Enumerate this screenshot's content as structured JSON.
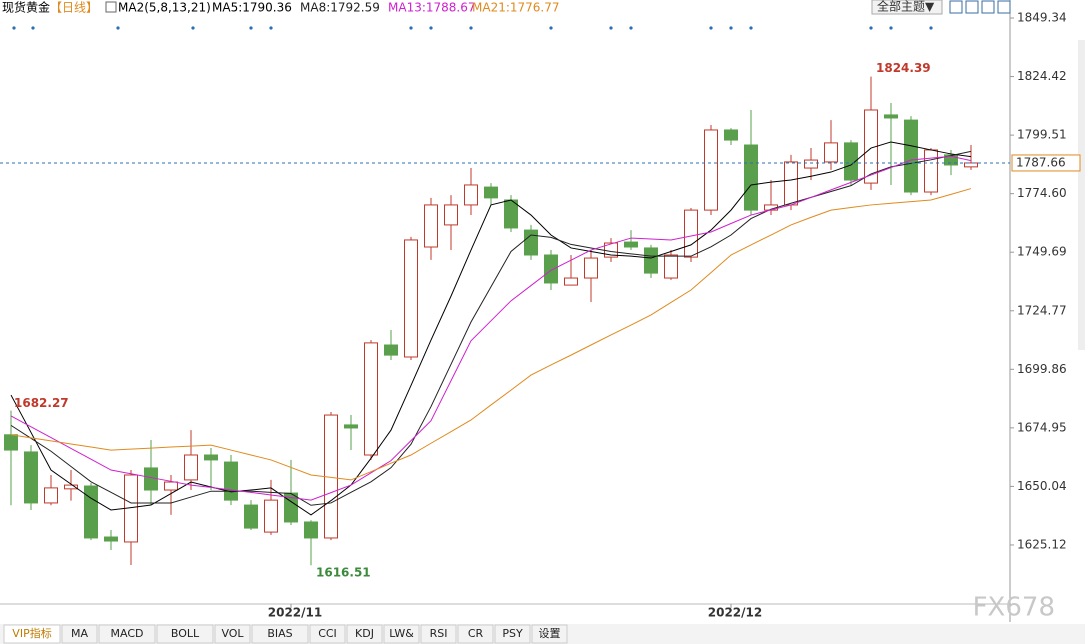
{
  "chart_data": {
    "type": "candlestick",
    "title": "现货黄金",
    "period": "【日线】",
    "indicator": "MA2(5,8,13,21)",
    "categories": [
      null,
      null,
      null,
      null,
      null,
      null,
      null,
      null,
      null,
      null,
      null,
      null,
      null,
      null,
      "2022/11",
      null,
      null,
      null,
      null,
      null,
      null,
      null,
      null,
      null,
      null,
      null,
      null,
      null,
      null,
      null,
      null,
      null,
      null,
      null,
      null,
      null,
      "2022/12",
      null,
      null,
      null,
      null,
      null,
      null,
      null,
      null,
      null,
      null,
      null,
      null
    ],
    "open": [
      1672,
      1664.7,
      1643,
      1649,
      1650.2,
      1628.5,
      1626.4,
      1657.9,
      1648.5,
      1652.8,
      1663.4,
      1660.4,
      1642.1,
      1630.6,
      1647.2,
      1634.9,
      1628.1,
      1676.2,
      1663.4,
      1710.2,
      1705.1,
      1751.9,
      1761.3,
      1769.8,
      1777.4,
      1771.9,
      1759.1,
      1748.5,
      1735.7,
      1738.7,
      1747.6,
      1754,
      1751.5,
      1738.7,
      1747.6,
      1767.6,
      1801.7,
      1795.3,
      1767.6,
      1769.8,
      1785.5,
      1788.1,
      1796.2,
      1779.1,
      1808.1,
      1805.9,
      1775.3,
      1791.1,
      1786
    ],
    "high": [
      1682.27,
      1667.6,
      1654.9,
      1657,
      1651.5,
      1631.5,
      1657,
      1669.8,
      1654.9,
      1674,
      1666.4,
      1663.4,
      1644.2,
      1652.8,
      1661.3,
      1635.7,
      1681.7,
      1680.4,
      1712.3,
      1716.6,
      1756.2,
      1772.8,
      1774,
      1785.5,
      1779.1,
      1774,
      1761.3,
      1750.6,
      1748.5,
      1750.6,
      1755.7,
      1759.1,
      1752.8,
      1750.6,
      1768.5,
      1803.8,
      1802.5,
      1810.2,
      1780.4,
      1791.1,
      1794,
      1805.9,
      1797.4,
      1824.39,
      1813.2,
      1807.6,
      1794,
      1793.2,
      1795.3
    ],
    "low": [
      1642,
      1640,
      1642,
      1644,
      1627.2,
      1623,
      1616.6,
      1642,
      1637.9,
      1648.5,
      1648.5,
      1642.1,
      1631.5,
      1629.4,
      1633.6,
      1616.51,
      1627.2,
      1665.5,
      1661.3,
      1703.8,
      1703.8,
      1746.4,
      1750.6,
      1765.5,
      1769.8,
      1758.3,
      1746.4,
      1733.6,
      1735.7,
      1728.5,
      1745.5,
      1750.6,
      1738.7,
      1737.9,
      1745.5,
      1765.5,
      1795.3,
      1765.5,
      1765.5,
      1767.6,
      1780.4,
      1784.7,
      1778.3,
      1776.2,
      1778.3,
      1774,
      1774,
      1782.5,
      1784.7
    ],
    "close": [
      1665.5,
      1643,
      1649.4,
      1650.6,
      1628.1,
      1626.8,
      1654.9,
      1648.5,
      1651.9,
      1663.4,
      1661.3,
      1644.2,
      1632.3,
      1644.2,
      1634.9,
      1628.1,
      1680.4,
      1674.9,
      1711.1,
      1705.9,
      1754.9,
      1769.8,
      1769.8,
      1778.3,
      1772.8,
      1760,
      1748.5,
      1736.6,
      1738.7,
      1747.2,
      1753.6,
      1751.9,
      1740.8,
      1748.5,
      1767.6,
      1801.7,
      1797.4,
      1767.6,
      1769.8,
      1788.1,
      1788.9,
      1796.2,
      1780.4,
      1810.2,
      1806.8,
      1775.3,
      1793.2,
      1786.8,
      1787.66
    ],
    "up_color": "#c0392b",
    "down_color": "#5aa04c",
    "series": [
      {
        "name": "MA5:1790.36",
        "color": "#000000",
        "values": [
          1688.9,
          1673,
          1657,
          1651,
          1645,
          1640,
          1641,
          1642.1,
          1647,
          1651.9,
          1649.8,
          1647.7,
          1648.5,
          1649.4,
          1643.6,
          1637.9,
          1644,
          1650.6,
          1662,
          1674,
          1693,
          1712.3,
          1731,
          1750.6,
          1769.8,
          1771.9,
          1765.5,
          1757,
          1751.5,
          1750,
          1748.5,
          1748,
          1747.2,
          1750,
          1752.8,
          1759.1,
          1767.6,
          1778.3,
          1779.5,
          1780.4,
          1782,
          1783.8,
          1786.8,
          1794,
          1796.6,
          1795,
          1793.2,
          1791.5,
          1790.36
        ]
      },
      {
        "name": "MA8:1792.59",
        "color": "#222222",
        "values": [
          1676,
          1670.5,
          1665,
          1658.5,
          1652,
          1647.5,
          1643,
          1643,
          1643,
          1645.5,
          1648,
          1648,
          1648,
          1647.5,
          1647,
          1642,
          1643,
          1647.5,
          1652,
          1658,
          1668,
          1684,
          1702,
          1720,
          1735,
          1750,
          1757,
          1756,
          1753,
          1751.5,
          1750,
          1749,
          1748,
          1748,
          1748,
          1752,
          1757,
          1764,
          1768,
          1770.5,
          1773,
          1775.5,
          1778,
          1783,
          1786,
          1787.5,
          1789,
          1790.8,
          1792.59
        ]
      },
      {
        "name": "MA13:1788.67",
        "color": "#d020d0",
        "values": [
          1680,
          1675.4,
          1670.8,
          1666.2,
          1661.6,
          1657,
          1655.4,
          1653.8,
          1652.2,
          1650.6,
          1649.6,
          1648.5,
          1647.5,
          1646.4,
          1645.3,
          1644.2,
          1647.4,
          1650.6,
          1655.8,
          1661,
          1669.5,
          1678,
          1695,
          1712,
          1720.5,
          1729,
          1735.5,
          1742,
          1746.3,
          1750.6,
          1753.2,
          1755.7,
          1755.3,
          1754.9,
          1756.6,
          1758.3,
          1761.9,
          1765.5,
          1767.7,
          1769.8,
          1773,
          1776.2,
          1779.4,
          1782.5,
          1785.7,
          1788.9,
          1789.7,
          1790.5,
          1788.67
        ]
      },
      {
        "name": "MA21:1776.77",
        "color": "#e08a1e",
        "values": [
          1672,
          1670.7,
          1669.4,
          1668.1,
          1666.8,
          1665.5,
          1665.9,
          1666.3,
          1666.8,
          1667.2,
          1667.6,
          1665.5,
          1663.4,
          1661.3,
          1658.1,
          1654.9,
          1653.9,
          1652.8,
          1656.3,
          1659.9,
          1663.4,
          1668.4,
          1673.3,
          1678.3,
          1684.7,
          1691,
          1697.4,
          1701.7,
          1705.9,
          1710.2,
          1714.5,
          1718.7,
          1723,
          1728.3,
          1733.6,
          1741,
          1748.5,
          1752.8,
          1757,
          1761.3,
          1764.5,
          1767.6,
          1768.7,
          1769.8,
          1770.5,
          1771.2,
          1771.9,
          1774.3,
          1776.77
        ]
      }
    ],
    "ylim": [
      1600,
      1857
    ],
    "yticks": [
      1849.34,
      1824.42,
      1799.51,
      {
        "value": 1774.6,
        "label": "1774.60"
      },
      1749.69,
      1724.77,
      1699.86,
      1674.95,
      1650.04,
      1625.12
    ],
    "grid": false
  },
  "theme_button": "全部主题▼",
  "tabs": [
    "VIP指标",
    "MA",
    "MACD",
    "BOLL",
    "VOL",
    "BIAS",
    "CCI",
    "KDJ",
    "LW&",
    "RSI",
    "CR",
    "PSY",
    "设置"
  ],
  "watermark": "FX678"
}
